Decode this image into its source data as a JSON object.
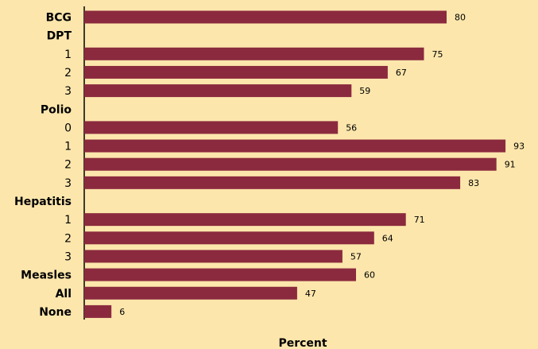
{
  "chart_data": {
    "type": "bar",
    "orientation": "horizontal",
    "xlabel": "Percent",
    "xlim": [
      0,
      100
    ],
    "grid": false,
    "bar_color": "#8b2a3e",
    "background_color": "#fce6ac",
    "rows": [
      {
        "label": "BCG",
        "value": 80,
        "bold": true
      },
      {
        "label": "DPT",
        "value": null,
        "bold": true
      },
      {
        "label": "1",
        "value": 75,
        "bold": false
      },
      {
        "label": "2",
        "value": 67,
        "bold": false
      },
      {
        "label": "3",
        "value": 59,
        "bold": false
      },
      {
        "label": "Polio",
        "value": null,
        "bold": true
      },
      {
        "label": "0",
        "value": 56,
        "bold": false
      },
      {
        "label": "1",
        "value": 93,
        "bold": false
      },
      {
        "label": "2",
        "value": 91,
        "bold": false
      },
      {
        "label": "3",
        "value": 83,
        "bold": false
      },
      {
        "label": "Hepatitis",
        "value": null,
        "bold": true
      },
      {
        "label": "1",
        "value": 71,
        "bold": false
      },
      {
        "label": "2",
        "value": 64,
        "bold": false
      },
      {
        "label": "3",
        "value": 57,
        "bold": false
      },
      {
        "label": "Measles",
        "value": 60,
        "bold": true
      },
      {
        "label": "All",
        "value": 47,
        "bold": true
      },
      {
        "label": "None",
        "value": 6,
        "bold": true
      }
    ]
  }
}
